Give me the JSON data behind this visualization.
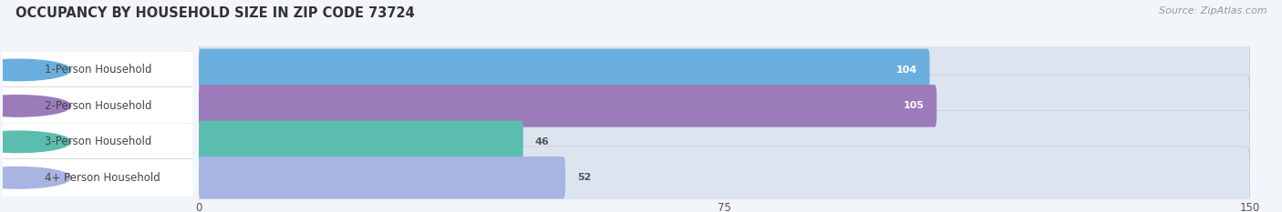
{
  "title": "OCCUPANCY BY HOUSEHOLD SIZE IN ZIP CODE 73724",
  "source": "Source: ZipAtlas.com",
  "categories": [
    "1-Person Household",
    "2-Person Household",
    "3-Person Household",
    "4+ Person Household"
  ],
  "values": [
    104,
    105,
    46,
    52
  ],
  "bar_colors": [
    "#6aaedd",
    "#9b7bba",
    "#5bbdb0",
    "#a8b4e2"
  ],
  "xlim": [
    0,
    150
  ],
  "xticks": [
    0,
    75,
    150
  ],
  "background_color": "#f0f4f8",
  "bar_bg_color": "#dce4f0",
  "title_fontsize": 10.5,
  "source_fontsize": 8,
  "label_fontsize": 8.5,
  "value_fontsize": 8,
  "bar_height": 0.58,
  "fig_width": 14.06,
  "fig_height": 2.33
}
